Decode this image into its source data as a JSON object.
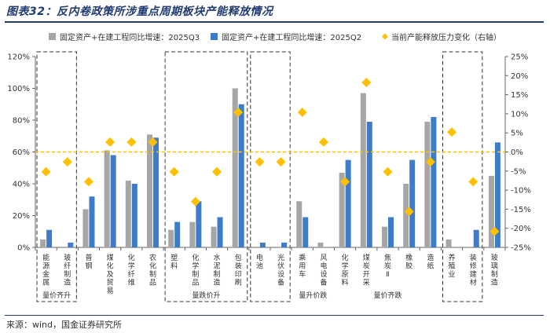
{
  "title": "图表32：反内卷政策所涉重点周期板块产能释放情况",
  "source": "来源：wind，国金证券研究所",
  "colors": {
    "q3": "#a6a6a6",
    "q2": "#3d7cc9",
    "diamond": "#ffc000",
    "zero_line": "#ffc000"
  },
  "chart_data": {
    "type": "bar",
    "categories": [
      "能源金属",
      "玻纤制造",
      "普钢",
      "煤化及贸易",
      "化学纤维",
      "农化制品",
      "塑料",
      "化学制品",
      "水泥制造",
      "包装印刷",
      "电池",
      "光伏设备",
      "乘用车",
      "风电设备",
      "化学原料",
      "煤炭开采",
      "焦炭Ⅱ",
      "橡胶",
      "造纸",
      "养殖业",
      "装修建材",
      "玻璃制造"
    ],
    "series": [
      {
        "name": "固定资产+在建工程同比增速：2025Q3",
        "type": "bar",
        "axis": "left",
        "values": [
          5,
          0,
          24,
          61,
          42,
          71,
          11,
          16,
          13,
          100,
          0,
          0,
          29,
          3,
          47,
          97,
          13,
          40,
          79,
          5,
          0,
          45
        ]
      },
      {
        "name": "固定资产+在建工程同比增速：2025Q2",
        "type": "bar",
        "axis": "left",
        "values": [
          11,
          3,
          32,
          58,
          40,
          69,
          16,
          29,
          19,
          90,
          3,
          3,
          19,
          0,
          55,
          79,
          19,
          55,
          82,
          0,
          11,
          66
        ]
      },
      {
        "name": "当前产能释放压力变化（右轴）",
        "type": "scatter",
        "axis": "right",
        "values": [
          -5.2,
          -2.6,
          -7.8,
          2.6,
          2.6,
          2.6,
          -5.2,
          -13,
          -5.2,
          10.4,
          -2.6,
          -2.6,
          10.4,
          2.6,
          -7.8,
          18.2,
          -5.2,
          -15.6,
          -2.6,
          5.2,
          -7.8,
          -20.8
        ]
      }
    ],
    "ylim": [
      0,
      120
    ],
    "yticks": [
      "0%",
      "20%",
      "40%",
      "60%",
      "80%",
      "100%",
      "120%"
    ],
    "y2lim": [
      -25,
      25
    ],
    "y2ticks": [
      "-25%",
      "-20%",
      "-15%",
      "-10%",
      "-5%",
      "0%",
      "5%",
      "10%",
      "15%",
      "20%",
      "25%"
    ],
    "reference_line": {
      "axis": "right",
      "value": 0,
      "style": "dashed"
    },
    "groups": [
      {
        "label": "量价齐升",
        "start": 0,
        "end": 1,
        "boxed": true
      },
      {
        "label": "",
        "start": 2,
        "end": 5,
        "boxed": false
      },
      {
        "label": "量跌价升",
        "start": 6,
        "end": 9,
        "boxed": true
      },
      {
        "label": "",
        "start": 10,
        "end": 11,
        "boxed": true
      },
      {
        "label": "量升价跌",
        "start": 12,
        "end": 13,
        "boxed": false
      },
      {
        "label": "量价齐跌",
        "start": 14,
        "end": 18,
        "boxed": false
      },
      {
        "label": "",
        "start": 19,
        "end": 20,
        "boxed": true
      }
    ],
    "legend_position": "top"
  }
}
